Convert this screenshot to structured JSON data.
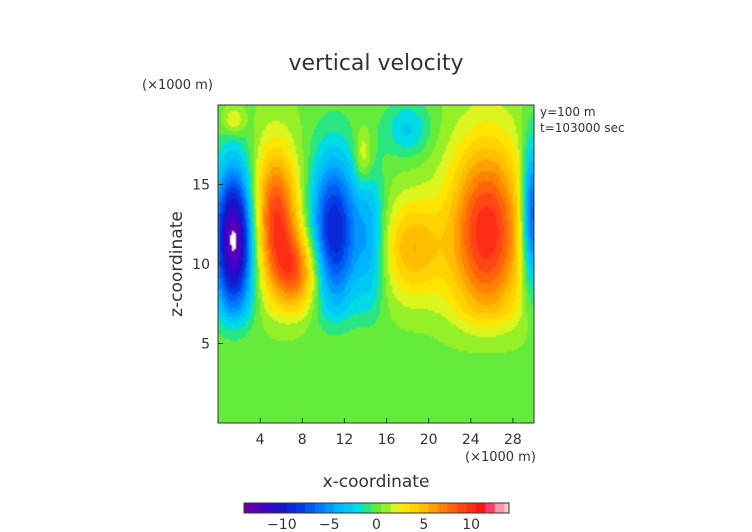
{
  "chart_data": {
    "type": "heatmap",
    "title": "vertical velocity",
    "xlabel": "x-coordinate",
    "ylabel": "z-coordinate",
    "x_unit": "(×1000 m)",
    "y_unit": "(×1000 m)",
    "annotations": [
      "y=100 m",
      "t=103000 sec"
    ],
    "xlim": [
      0,
      30
    ],
    "ylim": [
      0,
      20
    ],
    "x_ticks": [
      "4",
      "8",
      "12",
      "16",
      "20",
      "24",
      "28"
    ],
    "y_ticks": [
      "5",
      "10",
      "15"
    ],
    "colorbar": {
      "range": [
        -14,
        14
      ],
      "tick_labels": [
        "−10",
        "−5",
        "0",
        "5",
        "10"
      ],
      "tick_values": [
        -10,
        -5,
        0,
        5,
        10
      ]
    },
    "background_value": 0.3,
    "features": [
      {
        "x": 1.5,
        "z": 11.5,
        "sx": 1.3,
        "sz": 3.2,
        "value": -14
      },
      {
        "x": 5.5,
        "z": 13,
        "sx": 1.5,
        "sz": 3.0,
        "value": 9
      },
      {
        "x": 7.5,
        "z": 9.5,
        "sx": 1.6,
        "sz": 1.8,
        "value": 7
      },
      {
        "x": 11,
        "z": 12,
        "sx": 1.6,
        "sz": 3.4,
        "value": -10
      },
      {
        "x": 14.5,
        "z": 11.5,
        "sx": 1.0,
        "sz": 3.2,
        "value": -4
      },
      {
        "x": 13.8,
        "z": 16.8,
        "sx": 0.6,
        "sz": 1.2,
        "value": 3
      },
      {
        "x": 18.5,
        "z": 11,
        "sx": 2.0,
        "sz": 2.2,
        "value": 5
      },
      {
        "x": 25.5,
        "z": 12,
        "sx": 2.5,
        "sz": 4.0,
        "value": 10
      },
      {
        "x": 29.8,
        "z": 13,
        "sx": 0.7,
        "sz": 3.2,
        "value": -9
      },
      {
        "x": 18,
        "z": 18.5,
        "sx": 1.5,
        "sz": 1.2,
        "value": -3
      },
      {
        "x": 1.5,
        "z": 19,
        "sx": 0.7,
        "sz": 0.6,
        "value": 3
      }
    ]
  }
}
